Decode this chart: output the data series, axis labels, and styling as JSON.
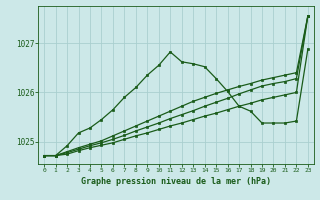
{
  "background_color": "#cce8e8",
  "grid_color": "#aacfcf",
  "line_color": "#1a5c1a",
  "marker_color": "#1a5c1a",
  "bottom_label": "Graphe pression niveau de la mer (hPa)",
  "xlim": [
    -0.5,
    23.5
  ],
  "ylim": [
    1024.55,
    1027.75
  ],
  "yticks": [
    1025,
    1026,
    1027
  ],
  "xticks": [
    0,
    1,
    2,
    3,
    4,
    5,
    6,
    7,
    8,
    9,
    10,
    11,
    12,
    13,
    14,
    15,
    16,
    17,
    18,
    19,
    20,
    21,
    22,
    23
  ],
  "series_straight1": [
    1024.72,
    1024.72,
    1024.75,
    1024.82,
    1024.88,
    1024.93,
    1024.98,
    1025.05,
    1025.12,
    1025.18,
    1025.25,
    1025.32,
    1025.38,
    1025.45,
    1025.52,
    1025.58,
    1025.65,
    1025.72,
    1025.78,
    1025.85,
    1025.9,
    1025.95,
    1026.0,
    1027.55
  ],
  "series_straight2": [
    1024.72,
    1024.72,
    1024.78,
    1024.85,
    1024.92,
    1024.98,
    1025.05,
    1025.13,
    1025.22,
    1025.3,
    1025.38,
    1025.47,
    1025.55,
    1025.63,
    1025.72,
    1025.8,
    1025.88,
    1025.97,
    1026.05,
    1026.13,
    1026.18,
    1026.22,
    1026.28,
    1027.55
  ],
  "series_straight3": [
    1024.72,
    1024.72,
    1024.8,
    1024.88,
    1024.95,
    1025.02,
    1025.12,
    1025.22,
    1025.32,
    1025.42,
    1025.52,
    1025.62,
    1025.72,
    1025.82,
    1025.9,
    1025.98,
    1026.05,
    1026.12,
    1026.18,
    1026.25,
    1026.3,
    1026.35,
    1026.4,
    1027.55
  ],
  "series_wavy": [
    1024.72,
    1024.72,
    1024.92,
    1025.18,
    1025.28,
    1025.45,
    1025.65,
    1025.9,
    1026.1,
    1026.35,
    1026.55,
    1026.82,
    1026.62,
    1026.58,
    1026.52,
    1026.28,
    1026.02,
    1025.72,
    1025.62,
    1025.38,
    1025.38,
    1025.38,
    1025.42,
    1026.88
  ]
}
